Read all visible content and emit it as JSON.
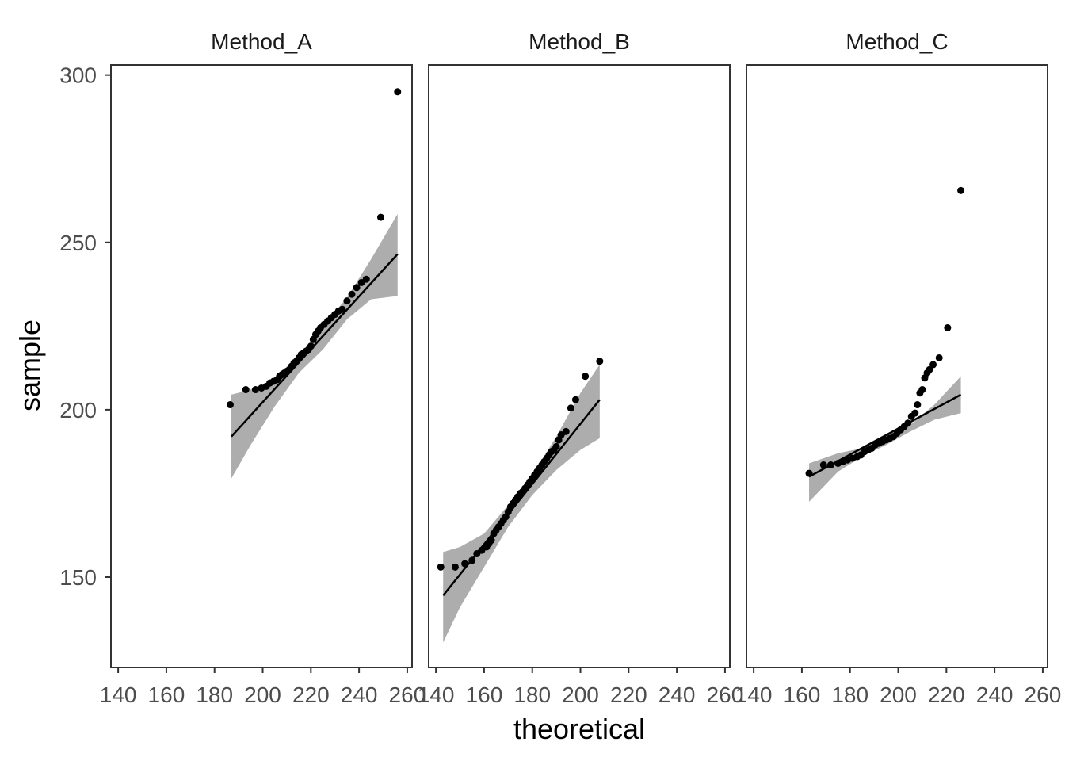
{
  "chart_data": {
    "type": "scatter",
    "xlabel": "theoretical",
    "ylabel": "sample",
    "xlim": [
      137,
      262
    ],
    "ylim": [
      123,
      303
    ],
    "x_ticks": [
      140,
      160,
      180,
      200,
      220,
      240,
      260
    ],
    "y_ticks": [
      150,
      200,
      250,
      300
    ],
    "grid": false,
    "colors": {
      "points": "#000000",
      "line": "#000000",
      "band": "#999999"
    },
    "panels": [
      {
        "title": "Method_A",
        "points": [
          [
            186.5,
            201.5
          ],
          [
            193,
            206
          ],
          [
            197,
            206
          ],
          [
            199.5,
            206.5
          ],
          [
            201.5,
            207
          ],
          [
            203,
            208
          ],
          [
            204.5,
            208.5
          ],
          [
            206,
            209
          ],
          [
            207,
            210
          ],
          [
            208,
            210.5
          ],
          [
            209,
            211
          ],
          [
            210,
            211.5
          ],
          [
            211,
            212
          ],
          [
            212,
            213
          ],
          [
            213,
            214
          ],
          [
            214,
            214.5
          ],
          [
            215,
            215.5
          ],
          [
            216,
            216.5
          ],
          [
            217,
            217
          ],
          [
            218,
            217.5
          ],
          [
            219,
            218
          ],
          [
            220,
            219
          ],
          [
            221,
            221
          ],
          [
            222,
            222.5
          ],
          [
            223,
            223.5
          ],
          [
            224,
            224.5
          ],
          [
            225.5,
            225.5
          ],
          [
            227,
            226.5
          ],
          [
            228.5,
            227.5
          ],
          [
            230,
            228.5
          ],
          [
            231.5,
            229.5
          ],
          [
            233,
            230
          ],
          [
            235,
            232.5
          ],
          [
            237,
            234.5
          ],
          [
            239,
            236.5
          ],
          [
            241,
            238
          ],
          [
            243,
            239
          ],
          [
            249,
            257.5
          ],
          [
            256,
            295
          ]
        ],
        "fit": [
          [
            187,
            192
          ],
          [
            256,
            246.5
          ]
        ],
        "band_upper": [
          [
            187,
            204.5
          ],
          [
            195,
            206
          ],
          [
            205,
            208.5
          ],
          [
            215,
            214.5
          ],
          [
            225,
            225
          ],
          [
            235,
            233.5
          ],
          [
            245,
            245
          ],
          [
            256,
            258.5
          ]
        ],
        "band_lower": [
          [
            187,
            179.5
          ],
          [
            195,
            189.5
          ],
          [
            205,
            201
          ],
          [
            215,
            211
          ],
          [
            225,
            218
          ],
          [
            235,
            227
          ],
          [
            245,
            233
          ],
          [
            256,
            234
          ]
        ]
      },
      {
        "title": "Method_B",
        "points": [
          [
            142,
            153
          ],
          [
            148,
            153
          ],
          [
            152,
            154
          ],
          [
            155,
            155
          ],
          [
            157,
            157
          ],
          [
            159,
            158
          ],
          [
            161,
            159
          ],
          [
            162,
            160
          ],
          [
            163,
            161
          ],
          [
            164,
            163
          ],
          [
            165,
            164
          ],
          [
            166,
            165
          ],
          [
            167,
            166
          ],
          [
            168,
            167
          ],
          [
            169,
            168
          ],
          [
            170,
            169.5
          ],
          [
            171,
            171
          ],
          [
            172,
            172
          ],
          [
            173,
            173
          ],
          [
            174,
            174
          ],
          [
            175,
            175
          ],
          [
            176,
            175.5
          ],
          [
            177,
            176.5
          ],
          [
            178,
            177.5
          ],
          [
            179,
            178.5
          ],
          [
            180,
            179.5
          ],
          [
            181,
            180.5
          ],
          [
            182,
            181.5
          ],
          [
            183,
            182.5
          ],
          [
            184,
            183.5
          ],
          [
            185,
            184.5
          ],
          [
            186,
            185.5
          ],
          [
            187,
            186.5
          ],
          [
            188,
            187.5
          ],
          [
            189,
            188
          ],
          [
            190,
            189
          ],
          [
            191,
            191
          ],
          [
            192,
            192.5
          ],
          [
            194,
            193.5
          ],
          [
            196,
            200.5
          ],
          [
            198,
            203
          ],
          [
            202,
            210
          ],
          [
            208,
            214.5
          ]
        ],
        "fit": [
          [
            143,
            144.5
          ],
          [
            208,
            203
          ]
        ],
        "band_upper": [
          [
            143,
            157.5
          ],
          [
            150,
            159
          ],
          [
            160,
            163
          ],
          [
            170,
            171.5
          ],
          [
            180,
            180.5
          ],
          [
            190,
            192
          ],
          [
            200,
            205
          ],
          [
            208,
            213.5
          ]
        ],
        "band_lower": [
          [
            143,
            130.5
          ],
          [
            150,
            141
          ],
          [
            160,
            153
          ],
          [
            170,
            165
          ],
          [
            180,
            174.5
          ],
          [
            190,
            182
          ],
          [
            200,
            188
          ],
          [
            208,
            191.5
          ]
        ]
      },
      {
        "title": "Method_C",
        "points": [
          [
            163,
            181
          ],
          [
            169,
            183.5
          ],
          [
            172,
            183.5
          ],
          [
            175,
            184
          ],
          [
            177,
            184.5
          ],
          [
            179,
            185
          ],
          [
            181,
            185.5
          ],
          [
            183,
            186
          ],
          [
            184.5,
            186.5
          ],
          [
            186,
            187.5
          ],
          [
            187.5,
            188
          ],
          [
            189,
            188.5
          ],
          [
            190.5,
            189.5
          ],
          [
            192,
            190
          ],
          [
            193.5,
            190.5
          ],
          [
            195,
            191
          ],
          [
            196.5,
            191.5
          ],
          [
            198,
            192
          ],
          [
            199.5,
            193
          ],
          [
            201,
            194
          ],
          [
            202.5,
            195
          ],
          [
            204,
            196
          ],
          [
            205.5,
            198
          ],
          [
            207,
            199
          ],
          [
            208,
            201.5
          ],
          [
            209,
            205
          ],
          [
            210,
            206
          ],
          [
            211,
            209.5
          ],
          [
            212,
            211
          ],
          [
            213,
            212
          ],
          [
            214.5,
            213.5
          ],
          [
            217,
            215.5
          ],
          [
            220.5,
            224.5
          ],
          [
            226,
            265.5
          ]
        ],
        "fit": [
          [
            163,
            180
          ],
          [
            226,
            204.5
          ]
        ],
        "band_upper": [
          [
            163,
            184
          ],
          [
            175,
            187
          ],
          [
            185,
            188.5
          ],
          [
            195,
            191.5
          ],
          [
            205,
            195.5
          ],
          [
            215,
            201.5
          ],
          [
            226,
            210
          ]
        ],
        "band_lower": [
          [
            163,
            172.5
          ],
          [
            175,
            181.5
          ],
          [
            185,
            186
          ],
          [
            195,
            189.5
          ],
          [
            205,
            193.5
          ],
          [
            215,
            197
          ],
          [
            226,
            199
          ]
        ]
      }
    ]
  }
}
